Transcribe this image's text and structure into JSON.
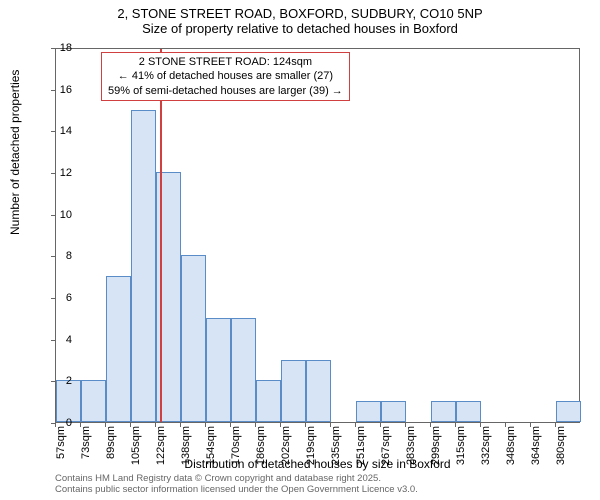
{
  "header": {
    "title_line1": "2, STONE STREET ROAD, BOXFORD, SUDBURY, CO10 5NP",
    "title_line2": "Size of property relative to detached houses in Boxford"
  },
  "chart": {
    "type": "histogram",
    "y_label": "Number of detached properties",
    "x_label": "Distribution of detached houses by size in Boxford",
    "ylim": [
      0,
      18
    ],
    "ytick_step": 2,
    "x_start": 57,
    "x_step": 16.17,
    "x_categories": [
      "57sqm",
      "73sqm",
      "89sqm",
      "105sqm",
      "122sqm",
      "138sqm",
      "154sqm",
      "170sqm",
      "186sqm",
      "202sqm",
      "219sqm",
      "235sqm",
      "251sqm",
      "267sqm",
      "283sqm",
      "299sqm",
      "315sqm",
      "332sqm",
      "348sqm",
      "364sqm",
      "380sqm"
    ],
    "bar_values": [
      2,
      2,
      7,
      15,
      12,
      8,
      5,
      5,
      2,
      3,
      3,
      0,
      1,
      1,
      0,
      1,
      1,
      0,
      0,
      0,
      1
    ],
    "bar_fill": "#d6e4f5",
    "bar_border": "#5a8dc8",
    "reference_value": 124,
    "reference_color": "#d04040",
    "annotation": {
      "line1": "2 STONE STREET ROAD: 124sqm",
      "line2": "← 41% of detached houses are smaller (27)",
      "line3": "59% of semi-detached houses are larger (39) →"
    },
    "background": "#ffffff",
    "axis_color": "#666666"
  },
  "footer": {
    "line1": "Contains HM Land Registry data © Crown copyright and database right 2025.",
    "line2": "Contains public sector information licensed under the Open Government Licence v3.0."
  }
}
